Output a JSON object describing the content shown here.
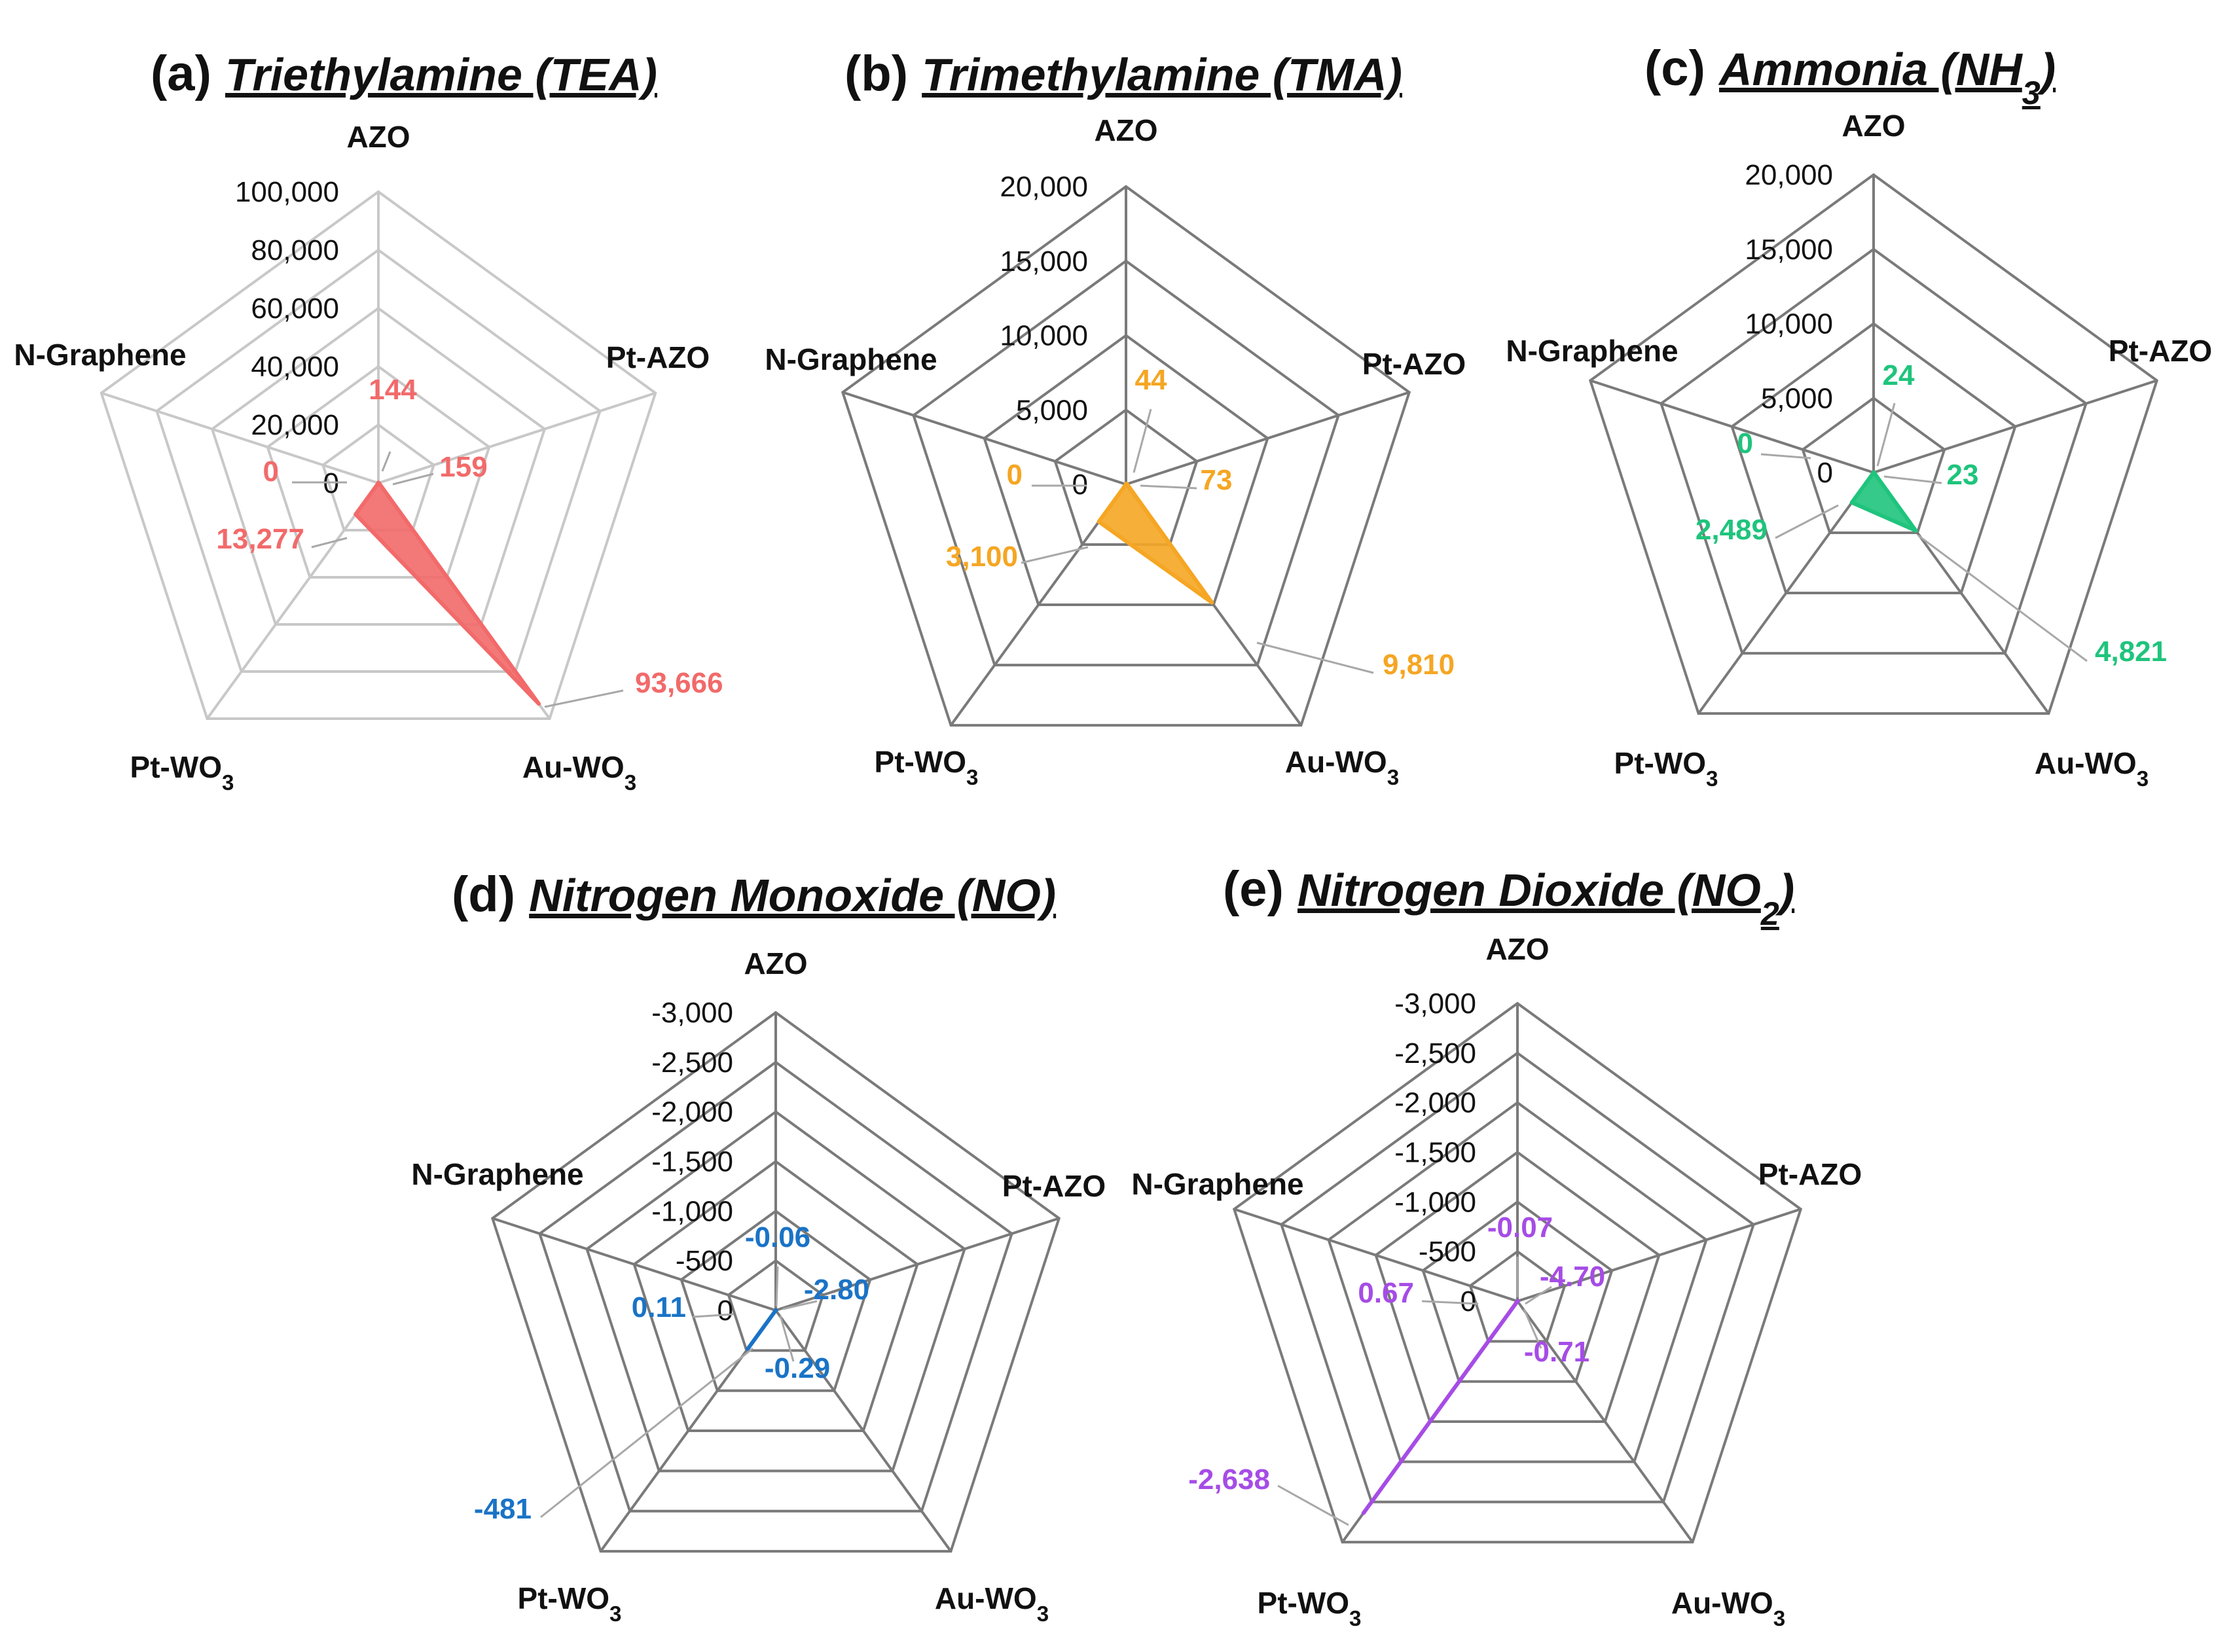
{
  "figure": {
    "subscript_marker": "_"
  },
  "chart_data": [
    {
      "type": "radar",
      "panel": "(a)",
      "title": "Triethylamine (TEA)",
      "color": "#f26a6a",
      "grid_color": "#c8c8c8",
      "axes": [
        "AZO",
        "Pt-AZO",
        "Au-WO_3",
        "Pt-WO_3",
        "N-Graphene"
      ],
      "values": [
        144,
        159,
        93666,
        13277,
        0
      ],
      "value_labels": [
        "144",
        "159",
        "93,666",
        "13,277",
        "0"
      ],
      "range": [
        0,
        100000
      ],
      "ticks": [
        0,
        20000,
        40000,
        60000,
        80000,
        100000
      ],
      "tick_labels": [
        "0",
        "20,000",
        "40,000",
        "60,000",
        "80,000",
        "100,000"
      ]
    },
    {
      "type": "radar",
      "panel": "(b)",
      "title": "Trimethylamine (TMA)",
      "color": "#f5a623",
      "grid_color": "#7a7a7a",
      "axes": [
        "AZO",
        "Pt-AZO",
        "Au-WO_3",
        "Pt-WO_3",
        "N-Graphene"
      ],
      "values": [
        44,
        73,
        9810,
        3100,
        0
      ],
      "value_labels": [
        "44",
        "73",
        "9,810",
        "3,100",
        "0"
      ],
      "range": [
        0,
        20000
      ],
      "ticks": [
        0,
        5000,
        10000,
        15000,
        20000
      ],
      "tick_labels": [
        "0",
        "5,000",
        "10,000",
        "15,000",
        "20,000"
      ]
    },
    {
      "type": "radar",
      "panel": "(c)",
      "title": "Ammonia (NH_3)",
      "color": "#1fc47c",
      "grid_color": "#7a7a7a",
      "axes": [
        "AZO",
        "Pt-AZO",
        "Au-WO_3",
        "Pt-WO_3",
        "N-Graphene"
      ],
      "values": [
        24,
        23,
        4821,
        2489,
        0
      ],
      "value_labels": [
        "24",
        "23",
        "4,821",
        "2,489",
        "0"
      ],
      "range": [
        0,
        20000
      ],
      "ticks": [
        0,
        5000,
        10000,
        15000,
        20000
      ],
      "tick_labels": [
        "0",
        "5,000",
        "10,000",
        "15,000",
        "20,000"
      ]
    },
    {
      "type": "radar",
      "panel": "(d)",
      "title": "Nitrogen Monoxide (NO)",
      "color": "#1a73c6",
      "grid_color": "#7a7a7a",
      "axes": [
        "AZO",
        "Pt-AZO",
        "Au-WO_3",
        "Pt-WO_3",
        "N-Graphene"
      ],
      "values": [
        -0.06,
        -2.8,
        -0.29,
        -481,
        0.11
      ],
      "value_labels": [
        "-0.06",
        "-2.80",
        "-0.29",
        "-481",
        "0.11"
      ],
      "range": [
        0,
        -3000
      ],
      "ticks": [
        0,
        -500,
        -1000,
        -1500,
        -2000,
        -2500,
        -3000
      ],
      "tick_labels": [
        "0",
        "-500",
        "-1,000",
        "-1,500",
        "-2,000",
        "-2,500",
        "-3,000"
      ]
    },
    {
      "type": "radar",
      "panel": "(e)",
      "title": "Nitrogen Dioxide (NO_2)",
      "color": "#a64ce6",
      "grid_color": "#7a7a7a",
      "axes": [
        "AZO",
        "Pt-AZO",
        "Au-WO_3",
        "Pt-WO_3",
        "N-Graphene"
      ],
      "values": [
        -0.07,
        -4.7,
        -0.71,
        -2638,
        0.67
      ],
      "value_labels": [
        "-0.07",
        "-4.70",
        "-0.71",
        "-2,638",
        "0.67"
      ],
      "range": [
        0,
        -3000
      ],
      "ticks": [
        0,
        -500,
        -1000,
        -1500,
        -2000,
        -2500,
        -3000
      ],
      "tick_labels": [
        "0",
        "-500",
        "-1,000",
        "-1,500",
        "-2,000",
        "-2,500",
        "-3,000"
      ]
    }
  ]
}
